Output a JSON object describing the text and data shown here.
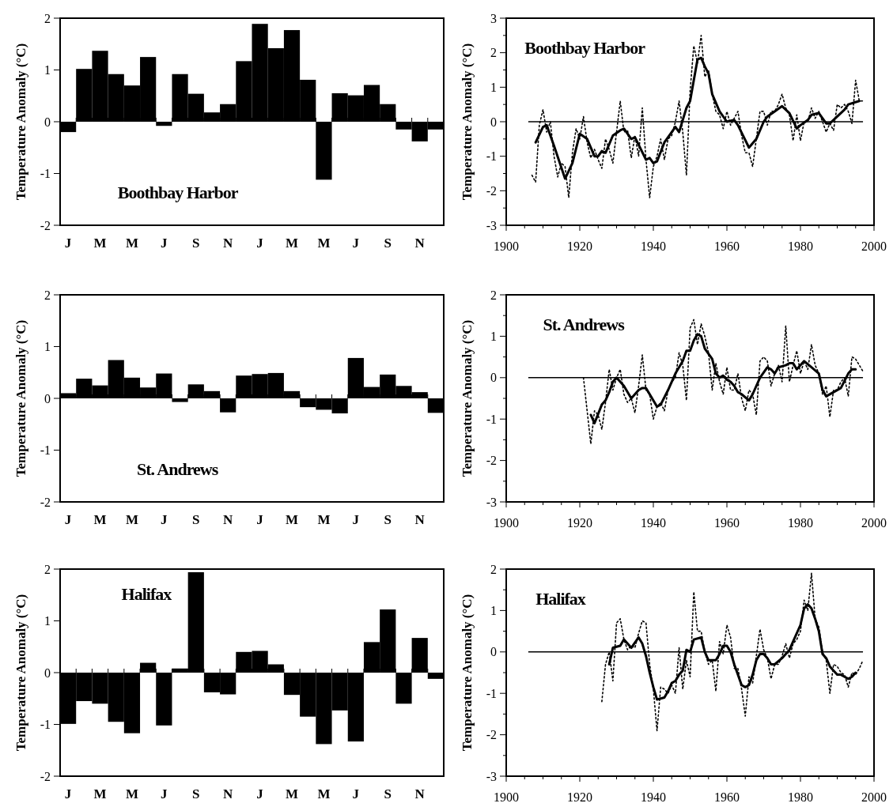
{
  "chart_data": [
    {
      "type": "bar",
      "ylabel": "Temperature Anomaly (°C)",
      "annotations": [
        "Boothbay Harbor"
      ],
      "categories": [
        "J",
        null,
        "M",
        null,
        "M",
        null,
        "J",
        null,
        "S",
        null,
        "N",
        null,
        "J",
        null,
        "M",
        null,
        "M",
        null,
        "J",
        null,
        "S",
        null,
        "N",
        null
      ],
      "ylim": [
        -2,
        2
      ],
      "yticks": [
        -2,
        -1,
        0,
        1,
        2
      ],
      "series": [
        {
          "color": "#000000",
          "values": [
            -0.2,
            1.02,
            1.37,
            0.92,
            0.7,
            1.25,
            -0.08,
            0.92,
            0.54,
            0.18,
            0.34,
            1.17,
            1.89,
            1.42,
            1.77,
            0.81,
            -1.12,
            0.55,
            0.51,
            0.71,
            0.34,
            -0.15,
            -0.38,
            -0.15
          ]
        }
      ]
    },
    {
      "type": "line",
      "ylabel": "Temperature Anomaly (°C)",
      "annotations": [
        "Boothbay Harbor"
      ],
      "xlim": [
        1900,
        2000
      ],
      "xticks": [
        1900,
        {
          "value": 1905,
          "label": null
        },
        {
          "value": 1910,
          "label": null
        },
        {
          "value": 1915,
          "label": null
        },
        1920,
        {
          "value": 1925,
          "label": null
        },
        {
          "value": 1930,
          "label": null
        },
        {
          "value": 1935,
          "label": null
        },
        1940,
        {
          "value": 1945,
          "label": null
        },
        {
          "value": 1950,
          "label": null
        },
        {
          "value": 1955,
          "label": null
        },
        1960,
        {
          "value": 1965,
          "label": null
        },
        {
          "value": 1970,
          "label": null
        },
        {
          "value": 1975,
          "label": null
        },
        1980,
        {
          "value": 1985,
          "label": null
        },
        {
          "value": 1990,
          "label": null
        },
        {
          "value": 1995,
          "label": null
        },
        2000
      ],
      "ylim": [
        -3,
        3
      ],
      "yticks": [
        -3,
        {
          "value": -2.5,
          "label": null
        },
        -2,
        {
          "value": -1.5,
          "label": null
        },
        -1,
        {
          "value": -0.5,
          "label": null
        },
        0,
        {
          "value": 0.5,
          "label": null
        },
        1,
        {
          "value": 1.5,
          "label": null
        },
        2,
        {
          "value": 2.5,
          "label": null
        },
        3
      ],
      "ref_lines": [
        {
          "axis": "y",
          "value": 0,
          "color": "#000000"
        }
      ],
      "series": [
        {
          "color": "#000000",
          "line_style": "dotted",
          "x": [
            1907,
            1908,
            1909,
            1910,
            1911,
            1912,
            1913,
            1914,
            1915,
            1916,
            1917,
            1918,
            1919,
            1920,
            1921,
            1922,
            1923,
            1924,
            1925,
            1926,
            1927,
            1928,
            1929,
            1930,
            1931,
            1932,
            1933,
            1934,
            1935,
            1936,
            1937,
            1938,
            1939,
            1940,
            1941,
            1942,
            1943,
            1944,
            1945,
            1946,
            1947,
            1948,
            1949,
            1950,
            1951,
            1952,
            1953,
            1954,
            1955,
            1956,
            1957,
            1958,
            1959,
            1960,
            1961,
            1962,
            1963,
            1964,
            1965,
            1966,
            1967,
            1968,
            1969,
            1970,
            1971,
            1972,
            1973,
            1974,
            1975,
            1976,
            1977,
            1978,
            1979,
            1980,
            1981,
            1982,
            1983,
            1984,
            1985,
            1986,
            1987,
            1988,
            1989,
            1990,
            1991,
            1992,
            1993,
            1994,
            1995,
            1996,
            1997
          ],
          "values": [
            -1.55,
            -1.75,
            -0.1,
            0.35,
            -0.3,
            0.0,
            -1.0,
            -1.6,
            -1.2,
            -1.3,
            -2.2,
            -0.9,
            -0.2,
            -0.5,
            0.15,
            -0.6,
            -1.05,
            -0.8,
            -1.1,
            -1.35,
            -0.5,
            -0.8,
            -1.2,
            -0.3,
            0.6,
            -0.3,
            -0.25,
            -1.05,
            -0.4,
            -1.0,
            0.4,
            -1.1,
            -2.2,
            -1.3,
            -1.0,
            -0.5,
            -1.1,
            -0.5,
            -0.4,
            0.0,
            0.6,
            -0.3,
            -1.55,
            0.9,
            2.2,
            1.7,
            2.5,
            1.3,
            1.5,
            0.8,
            0.3,
            0.2,
            -0.2,
            0.3,
            -0.1,
            0.1,
            0.3,
            -0.4,
            -0.9,
            -0.9,
            -1.3,
            -0.5,
            0.3,
            0.3,
            -0.1,
            0.3,
            0.3,
            0.5,
            0.8,
            0.4,
            0.2,
            -0.55,
            0.2,
            -0.55,
            0.0,
            0.0,
            0.4,
            0.1,
            0.3,
            0.0,
            -0.3,
            -0.05,
            -0.25,
            0.5,
            0.4,
            0.5,
            0.3,
            -0.05,
            1.2,
            0.6,
            0.6
          ]
        },
        {
          "color": "#000000",
          "line_style": "solid",
          "x": [
            1908,
            1910,
            1911,
            1913,
            1916,
            1918,
            1920,
            1922,
            1924,
            1925,
            1926,
            1927,
            1929,
            1931,
            1932,
            1934,
            1935,
            1938,
            1939,
            1940,
            1941,
            1943,
            1946,
            1947,
            1949,
            1950,
            1951,
            1952,
            1953,
            1954,
            1955,
            1956,
            1958,
            1960,
            1962,
            1963,
            1966,
            1968,
            1970,
            1971,
            1973,
            1975,
            1977,
            1979,
            1980,
            1982,
            1983,
            1985,
            1987,
            1988,
            1990,
            1992,
            1993,
            1996
          ],
          "values": [
            -0.6,
            -0.15,
            -0.1,
            -0.7,
            -1.65,
            -1.2,
            -0.35,
            -0.5,
            -1.0,
            -1.0,
            -0.85,
            -0.9,
            -0.4,
            -0.25,
            -0.2,
            -0.5,
            -0.45,
            -1.1,
            -1.05,
            -1.2,
            -1.15,
            -0.6,
            -0.15,
            -0.3,
            0.4,
            0.6,
            1.2,
            1.8,
            1.85,
            1.6,
            1.4,
            0.8,
            0.3,
            0.0,
            0.05,
            -0.1,
            -0.75,
            -0.5,
            0.0,
            0.15,
            0.3,
            0.45,
            0.25,
            -0.2,
            -0.1,
            0.05,
            0.2,
            0.25,
            -0.05,
            -0.05,
            0.15,
            0.35,
            0.5,
            0.6
          ]
        }
      ]
    },
    {
      "type": "bar",
      "ylabel": "Temperature Anomaly (°C)",
      "annotations": [
        "St. Andrews"
      ],
      "categories": [
        "J",
        null,
        "M",
        null,
        "M",
        null,
        "J",
        null,
        "S",
        null,
        "N",
        null,
        "J",
        null,
        "M",
        null,
        "M",
        null,
        "J",
        null,
        "S",
        null,
        "N",
        null
      ],
      "ylim": [
        -2,
        2
      ],
      "yticks": [
        -2,
        -1,
        0,
        1,
        2
      ],
      "series": [
        {
          "color": "#000000",
          "values": [
            0.1,
            0.38,
            0.25,
            0.74,
            0.4,
            0.21,
            0.48,
            -0.07,
            0.27,
            0.14,
            -0.27,
            0.44,
            0.47,
            0.49,
            0.14,
            -0.17,
            -0.22,
            -0.29,
            0.78,
            0.22,
            0.46,
            0.24,
            0.12,
            -0.28
          ]
        }
      ]
    },
    {
      "type": "line",
      "ylabel": "Temperature Anomaly (°C)",
      "annotations": [
        "St. Andrews"
      ],
      "xlim": [
        1900,
        2000
      ],
      "xticks": [
        1900,
        {
          "value": 1905,
          "label": null
        },
        {
          "value": 1910,
          "label": null
        },
        {
          "value": 1915,
          "label": null
        },
        1920,
        {
          "value": 1925,
          "label": null
        },
        {
          "value": 1930,
          "label": null
        },
        {
          "value": 1935,
          "label": null
        },
        1940,
        {
          "value": 1945,
          "label": null
        },
        {
          "value": 1950,
          "label": null
        },
        {
          "value": 1955,
          "label": null
        },
        1960,
        {
          "value": 1965,
          "label": null
        },
        {
          "value": 1970,
          "label": null
        },
        {
          "value": 1975,
          "label": null
        },
        1980,
        {
          "value": 1985,
          "label": null
        },
        {
          "value": 1990,
          "label": null
        },
        {
          "value": 1995,
          "label": null
        },
        2000
      ],
      "ylim": [
        -3,
        2
      ],
      "yticks": [
        -3,
        {
          "value": -2.5,
          "label": null
        },
        -2,
        {
          "value": -1.5,
          "label": null
        },
        -1,
        {
          "value": -0.5,
          "label": null
        },
        0,
        {
          "value": 0.5,
          "label": null
        },
        1,
        {
          "value": 1.5,
          "label": null
        },
        2
      ],
      "ref_lines": [
        {
          "axis": "y",
          "value": 0,
          "color": "#000000"
        }
      ],
      "series": [
        {
          "color": "#000000",
          "line_style": "dotted",
          "x": [
            1921,
            1922,
            1923,
            1924,
            1925,
            1926,
            1927,
            1928,
            1929,
            1930,
            1931,
            1932,
            1933,
            1934,
            1935,
            1936,
            1937,
            1938,
            1939,
            1940,
            1941,
            1942,
            1943,
            1944,
            1945,
            1946,
            1947,
            1948,
            1949,
            1950,
            1951,
            1952,
            1953,
            1954,
            1955,
            1956,
            1957,
            1958,
            1959,
            1960,
            1961,
            1962,
            1963,
            1964,
            1965,
            1966,
            1967,
            1968,
            1969,
            1970,
            1971,
            1972,
            1973,
            1974,
            1975,
            1976,
            1977,
            1978,
            1979,
            1980,
            1981,
            1982,
            1983,
            1984,
            1985,
            1986,
            1987,
            1988,
            1989,
            1990,
            1991,
            1992,
            1993,
            1994,
            1995,
            1996,
            1997
          ],
          "values": [
            0.0,
            -0.8,
            -1.6,
            -0.8,
            -0.9,
            -1.25,
            -0.6,
            0.2,
            -0.3,
            0.0,
            0.2,
            -0.4,
            -0.6,
            -0.5,
            -0.85,
            -0.2,
            0.55,
            -0.3,
            -0.4,
            -1.0,
            -0.7,
            -0.6,
            -0.8,
            -0.3,
            -0.1,
            0.0,
            0.6,
            0.3,
            -0.55,
            1.2,
            1.4,
            0.8,
            1.3,
            1.0,
            0.6,
            -0.3,
            0.35,
            -0.1,
            -0.4,
            0.25,
            -0.3,
            -0.3,
            0.1,
            -0.5,
            -0.8,
            -0.3,
            -0.4,
            -0.9,
            0.4,
            0.5,
            0.4,
            -0.2,
            0.1,
            0.3,
            -0.1,
            1.25,
            -0.1,
            0.3,
            0.65,
            0.1,
            0.4,
            0.2,
            0.8,
            0.3,
            0.1,
            -0.4,
            -0.2,
            -0.95,
            -0.3,
            -0.3,
            -0.1,
            0.0,
            -0.45,
            0.5,
            0.45,
            0.3,
            0.15
          ]
        },
        {
          "color": "#000000",
          "line_style": "solid",
          "x": [
            1923,
            1924,
            1926,
            1927,
            1928,
            1929,
            1930,
            1932,
            1934,
            1936,
            1937,
            1938,
            1939,
            1941,
            1942,
            1944,
            1946,
            1948,
            1949,
            1950,
            1951,
            1952,
            1953,
            1954,
            1956,
            1957,
            1958,
            1959,
            1960,
            1961,
            1962,
            1963,
            1964,
            1966,
            1967,
            1969,
            1971,
            1972,
            1973,
            1974,
            1976,
            1977,
            1978,
            1979,
            1980,
            1981,
            1983,
            1985,
            1986,
            1987,
            1989,
            1991,
            1993,
            1994,
            1995
          ],
          "values": [
            -0.9,
            -1.1,
            -0.65,
            -0.55,
            -0.35,
            -0.1,
            0.0,
            -0.2,
            -0.5,
            -0.3,
            -0.25,
            -0.25,
            -0.4,
            -0.7,
            -0.65,
            -0.3,
            0.1,
            0.4,
            0.65,
            0.65,
            0.9,
            1.05,
            1.0,
            0.7,
            0.45,
            0.1,
            0.0,
            0.05,
            -0.05,
            -0.1,
            -0.2,
            -0.35,
            -0.4,
            -0.55,
            -0.4,
            0.0,
            0.25,
            0.2,
            0.1,
            0.25,
            0.3,
            0.35,
            0.35,
            0.2,
            0.3,
            0.4,
            0.25,
            0.1,
            -0.3,
            -0.45,
            -0.35,
            -0.25,
            0.1,
            0.2,
            0.2
          ]
        }
      ]
    },
    {
      "type": "bar",
      "ylabel": "Temperature Anomaly (°C)",
      "annotations": [
        "Halifax"
      ],
      "categories": [
        "J",
        null,
        "M",
        null,
        "M",
        null,
        "J",
        null,
        "S",
        null,
        "N",
        null,
        "J",
        null,
        "M",
        null,
        "M",
        null,
        "J",
        null,
        "S",
        null,
        "N",
        null
      ],
      "ylim": [
        -2,
        2
      ],
      "yticks": [
        -2,
        -1,
        0,
        1,
        2
      ],
      "series": [
        {
          "color": "#000000",
          "values": [
            -0.99,
            -0.55,
            -0.6,
            -0.95,
            -1.17,
            0.19,
            -1.02,
            0.08,
            1.94,
            -0.38,
            -0.42,
            0.4,
            0.42,
            0.16,
            -0.43,
            -0.85,
            -1.38,
            -0.73,
            -1.33,
            0.59,
            1.22,
            -0.6,
            0.67,
            -0.12
          ]
        }
      ]
    },
    {
      "type": "line",
      "ylabel": "Temperature Anomaly (°C)",
      "annotations": [
        "Halifax"
      ],
      "xlim": [
        1900,
        2000
      ],
      "xticks": [
        1900,
        {
          "value": 1905,
          "label": null
        },
        {
          "value": 1910,
          "label": null
        },
        {
          "value": 1915,
          "label": null
        },
        1920,
        {
          "value": 1925,
          "label": null
        },
        {
          "value": 1930,
          "label": null
        },
        {
          "value": 1935,
          "label": null
        },
        1940,
        {
          "value": 1945,
          "label": null
        },
        {
          "value": 1950,
          "label": null
        },
        {
          "value": 1955,
          "label": null
        },
        1960,
        {
          "value": 1965,
          "label": null
        },
        {
          "value": 1970,
          "label": null
        },
        {
          "value": 1975,
          "label": null
        },
        1980,
        {
          "value": 1985,
          "label": null
        },
        {
          "value": 1990,
          "label": null
        },
        {
          "value": 1995,
          "label": null
        },
        2000
      ],
      "ylim": [
        -3,
        2
      ],
      "yticks": [
        -3,
        {
          "value": -2.5,
          "label": null
        },
        -2,
        {
          "value": -1.5,
          "label": null
        },
        -1,
        {
          "value": -0.5,
          "label": null
        },
        0,
        {
          "value": 0.5,
          "label": null
        },
        1,
        {
          "value": 1.5,
          "label": null
        },
        2
      ],
      "ref_lines": [
        {
          "axis": "y",
          "value": 0,
          "color": "#000000"
        }
      ],
      "series": [
        {
          "color": "#000000",
          "line_style": "dotted",
          "x": [
            1926,
            1927,
            1928,
            1929,
            1930,
            1931,
            1932,
            1933,
            1934,
            1935,
            1936,
            1937,
            1938,
            1939,
            1940,
            1941,
            1942,
            1943,
            1944,
            1945,
            1946,
            1947,
            1948,
            1949,
            1950,
            1951,
            1952,
            1953,
            1954,
            1955,
            1956,
            1957,
            1958,
            1959,
            1960,
            1961,
            1962,
            1963,
            1964,
            1965,
            1966,
            1967,
            1968,
            1969,
            1970,
            1971,
            1972,
            1973,
            1974,
            1975,
            1976,
            1977,
            1978,
            1979,
            1980,
            1981,
            1982,
            1983,
            1984,
            1985,
            1986,
            1987,
            1988,
            1989,
            1990,
            1991,
            1992,
            1993,
            1994,
            1995,
            1996,
            1997
          ],
          "values": [
            -1.2,
            -0.3,
            0.0,
            -0.7,
            0.7,
            0.8,
            0.3,
            0.05,
            0.15,
            0.1,
            0.45,
            0.75,
            0.7,
            -0.3,
            -0.9,
            -1.9,
            -0.85,
            -0.9,
            -1.0,
            -0.8,
            -1.0,
            0.1,
            -0.9,
            -0.2,
            -0.6,
            1.45,
            0.5,
            0.5,
            0.0,
            -0.3,
            -0.2,
            -0.95,
            0.25,
            -0.05,
            0.65,
            0.35,
            -0.4,
            -0.4,
            -0.9,
            -1.55,
            -0.6,
            -0.75,
            -0.1,
            0.55,
            0.05,
            -0.15,
            -0.65,
            -0.3,
            -0.3,
            -0.1,
            0.2,
            -0.15,
            0.2,
            0.3,
            0.5,
            1.25,
            1.0,
            1.9,
            0.8,
            0.6,
            0.0,
            -0.2,
            -1.0,
            -0.3,
            -0.35,
            -0.5,
            -0.55,
            -0.85,
            -0.5,
            -0.55,
            -0.4,
            -0.2
          ]
        },
        {
          "color": "#000000",
          "line_style": "solid",
          "x": [
            1928,
            1929,
            1931,
            1932,
            1934,
            1936,
            1937,
            1938,
            1939,
            1940,
            1941,
            1943,
            1944,
            1945,
            1946,
            1947,
            1948,
            1949,
            1950,
            1951,
            1953,
            1954,
            1955,
            1957,
            1958,
            1959,
            1960,
            1961,
            1962,
            1964,
            1965,
            1966,
            1967,
            1968,
            1969,
            1970,
            1971,
            1972,
            1973,
            1975,
            1977,
            1978,
            1980,
            1981,
            1982,
            1983,
            1984,
            1985,
            1986,
            1987,
            1988,
            1989,
            1990,
            1991,
            1992,
            1993,
            1994,
            1995
          ],
          "values": [
            -0.3,
            0.1,
            0.15,
            0.3,
            0.1,
            0.35,
            0.2,
            -0.1,
            -0.5,
            -0.85,
            -1.15,
            -1.1,
            -0.95,
            -0.75,
            -0.7,
            -0.55,
            -0.45,
            0.05,
            0.0,
            0.3,
            0.35,
            0.0,
            -0.2,
            -0.2,
            -0.05,
            0.15,
            0.15,
            0.0,
            -0.3,
            -0.8,
            -0.85,
            -0.8,
            -0.55,
            -0.2,
            -0.05,
            -0.05,
            -0.15,
            -0.3,
            -0.3,
            -0.15,
            0.05,
            0.25,
            0.65,
            1.05,
            1.15,
            1.05,
            0.8,
            0.5,
            -0.05,
            -0.15,
            -0.35,
            -0.45,
            -0.55,
            -0.55,
            -0.6,
            -0.65,
            -0.6,
            -0.5
          ]
        }
      ]
    }
  ]
}
